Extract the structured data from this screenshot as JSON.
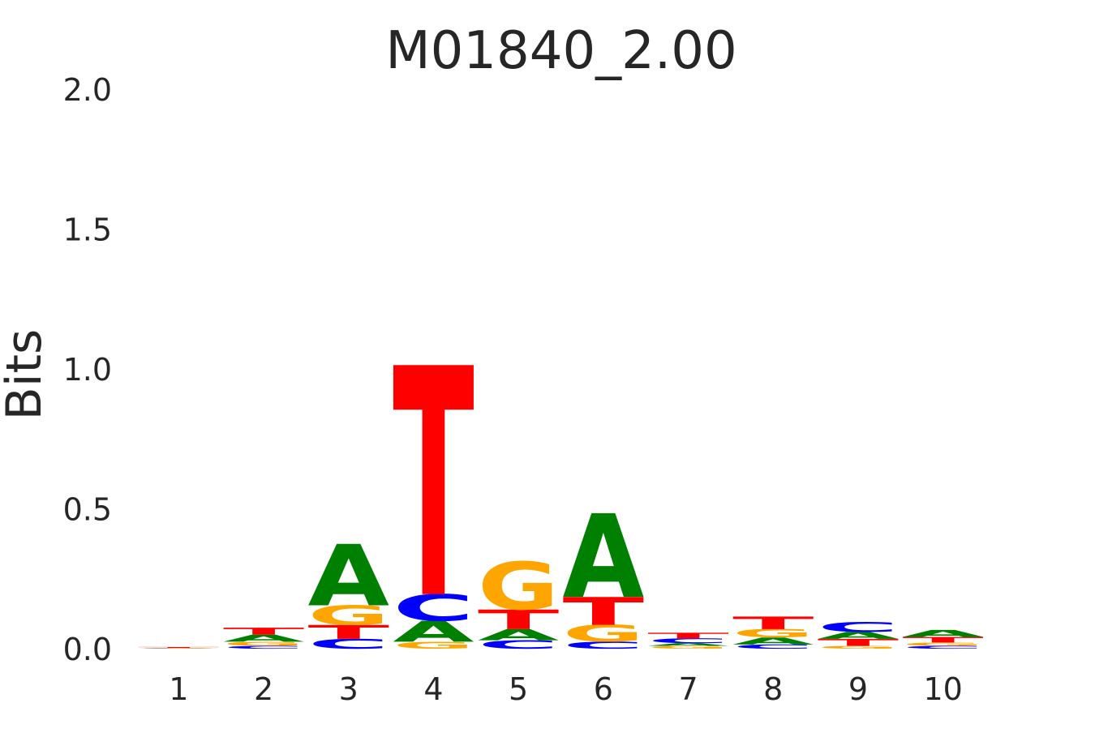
{
  "chart_data": {
    "type": "logo",
    "title": "M01840_2.00",
    "y_label": "Bits",
    "xlim": [
      0.5,
      10.5
    ],
    "xticks": [
      1,
      2,
      3,
      4,
      5,
      6,
      7,
      8,
      9,
      10
    ],
    "ylim": [
      0,
      2
    ],
    "yticks": [
      {
        "value": 0,
        "label": "0.0"
      },
      {
        "value": 0.5,
        "label": "0.5"
      },
      {
        "value": 1,
        "label": "1.0"
      },
      {
        "value": 1.5,
        "label": "1.5"
      },
      {
        "value": 2,
        "label": "2.0"
      }
    ],
    "colors": {
      "A": "#008000",
      "C": "#0000ff",
      "G": "#ffa500",
      "T": "#ff0000"
    },
    "stacks": [
      [
        {
          "letter": "A",
          "value": 0.001
        },
        {
          "letter": "C",
          "value": 0.001
        },
        {
          "letter": "G",
          "value": 0.001
        },
        {
          "letter": "T",
          "value": 0.003
        }
      ],
      [
        {
          "letter": "C",
          "value": 0.01
        },
        {
          "letter": "G",
          "value": 0.015
        },
        {
          "letter": "A",
          "value": 0.025
        },
        {
          "letter": "T",
          "value": 0.025
        }
      ],
      [
        {
          "letter": "C",
          "value": 0.035
        },
        {
          "letter": "T",
          "value": 0.05
        },
        {
          "letter": "G",
          "value": 0.07
        },
        {
          "letter": "A",
          "value": 0.22
        }
      ],
      [
        {
          "letter": "G",
          "value": 0.025
        },
        {
          "letter": "A",
          "value": 0.075
        },
        {
          "letter": "C",
          "value": 0.095
        },
        {
          "letter": "T",
          "value": 0.82
        }
      ],
      [
        {
          "letter": "C",
          "value": 0.03
        },
        {
          "letter": "A",
          "value": 0.04
        },
        {
          "letter": "T",
          "value": 0.07
        },
        {
          "letter": "G",
          "value": 0.17
        }
      ],
      [
        {
          "letter": "C",
          "value": 0.025
        },
        {
          "letter": "G",
          "value": 0.06
        },
        {
          "letter": "T",
          "value": 0.1
        },
        {
          "letter": "A",
          "value": 0.3
        }
      ],
      [
        {
          "letter": "G",
          "value": 0.01
        },
        {
          "letter": "A",
          "value": 0.01
        },
        {
          "letter": "C",
          "value": 0.017
        },
        {
          "letter": "T",
          "value": 0.02
        }
      ],
      [
        {
          "letter": "C",
          "value": 0.015
        },
        {
          "letter": "A",
          "value": 0.025
        },
        {
          "letter": "G",
          "value": 0.03
        },
        {
          "letter": "T",
          "value": 0.045
        }
      ],
      [
        {
          "letter": "G",
          "value": 0.01
        },
        {
          "letter": "T",
          "value": 0.025
        },
        {
          "letter": "A",
          "value": 0.025
        },
        {
          "letter": "C",
          "value": 0.035
        }
      ],
      [
        {
          "letter": "C",
          "value": 0.01
        },
        {
          "letter": "G",
          "value": 0.012
        },
        {
          "letter": "T",
          "value": 0.02
        },
        {
          "letter": "A",
          "value": 0.025
        }
      ]
    ]
  }
}
